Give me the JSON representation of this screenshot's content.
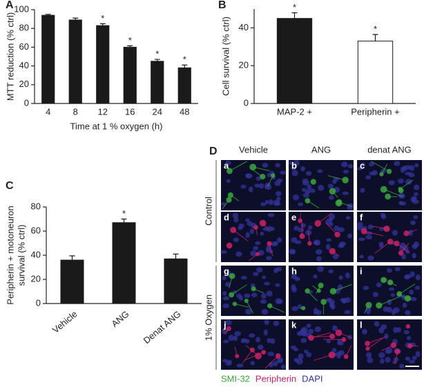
{
  "chart_data": [
    {
      "type": "bar",
      "panel": "A",
      "ylabel": [
        "MTT reduction (% ctrl)"
      ],
      "xlabel": "Time at 1 % oxygen (h)",
      "categories": [
        "4",
        "8",
        "12",
        "16",
        "24",
        "48"
      ],
      "values": [
        94,
        89,
        83,
        60,
        45,
        38
      ],
      "errors": [
        1,
        2,
        2,
        1.5,
        2,
        3
      ],
      "markers": [
        null,
        null,
        "*",
        "*",
        "*",
        "*"
      ],
      "color": "#1a1a1a",
      "ylim": [
        0,
        100
      ],
      "yticks": [
        0,
        20,
        40,
        60,
        80,
        100
      ]
    },
    {
      "type": "bar",
      "panel": "B",
      "ylabel": [
        "Cell survival (% ctrl)"
      ],
      "categories": [
        "MAP-2 +",
        "Peripherin +"
      ],
      "values": [
        45,
        33
      ],
      "errors": [
        3,
        3.5
      ],
      "markers": [
        "*",
        "*"
      ],
      "colors": [
        "#1a1a1a",
        "#ffffff"
      ],
      "ylim": [
        0,
        50
      ],
      "yticks": [
        0,
        20,
        40
      ]
    },
    {
      "type": "bar",
      "panel": "C",
      "ylabel": [
        "Peripherin + motoneuron",
        "survival (% ctrl)"
      ],
      "categories": [
        "Vehicle",
        "ANG",
        "Denat ANG"
      ],
      "values": [
        36,
        67,
        37
      ],
      "errors": [
        3.5,
        3,
        4
      ],
      "markers": [
        null,
        "*",
        null
      ],
      "color": "#1a1a1a",
      "ylim": [
        0,
        80
      ],
      "yticks": [
        0,
        20,
        40,
        60,
        80
      ]
    }
  ],
  "panel_d": {
    "label": "D",
    "columns": [
      "Vehicle",
      "ANG",
      "denat ANG"
    ],
    "rows": [
      "Control",
      "1% Oxygen"
    ],
    "tiles": [
      "a",
      "b",
      "c",
      "d",
      "e",
      "f",
      "g",
      "h",
      "i",
      "j",
      "k",
      "l"
    ],
    "legend": [
      {
        "text": "SMI-32",
        "color": "#3aa83a"
      },
      {
        "text": "Peripherin",
        "color": "#cc2266"
      },
      {
        "text": "DAPI",
        "color": "#333399"
      }
    ]
  }
}
